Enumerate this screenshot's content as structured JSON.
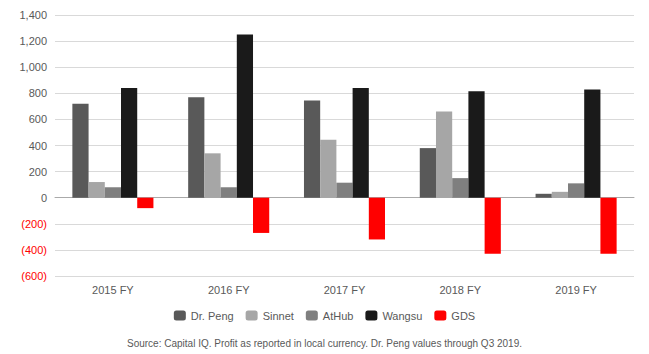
{
  "chart_data": {
    "type": "bar",
    "categories": [
      "2015 FY",
      "2016 FY",
      "2017 FY",
      "2018 FY",
      "2019 FY"
    ],
    "series": [
      {
        "name": "Dr. Peng",
        "color": "#595959",
        "values": [
          720,
          770,
          745,
          380,
          30
        ]
      },
      {
        "name": "Sinnet",
        "color": "#a6a6a6",
        "values": [
          120,
          340,
          445,
          660,
          45
        ]
      },
      {
        "name": "AtHub",
        "color": "#7f7f7f",
        "values": [
          80,
          80,
          115,
          150,
          110
        ]
      },
      {
        "name": "Wangsu",
        "color": "#1a1a1a",
        "values": [
          840,
          1250,
          840,
          815,
          830
        ]
      },
      {
        "name": "GDS",
        "color": "#ff0000",
        "values": [
          -80,
          -270,
          -320,
          -430,
          -430
        ]
      }
    ],
    "ylim": [
      -600,
      1400
    ],
    "yticks": [
      {
        "value": -600,
        "label": "(600)"
      },
      {
        "value": -400,
        "label": "(400)"
      },
      {
        "value": -200,
        "label": "(200)"
      },
      0,
      200,
      400,
      600,
      800,
      {
        "value": 1000,
        "label": "1,000"
      },
      {
        "value": 1200,
        "label": "1,200"
      },
      {
        "value": 1400,
        "label": "1,400"
      }
    ],
    "grid": true,
    "legend": "bottom",
    "annotations": [
      "Source: Capital IQ. Profit as reported in local currency. Dr. Peng values through Q3 2019."
    ]
  }
}
